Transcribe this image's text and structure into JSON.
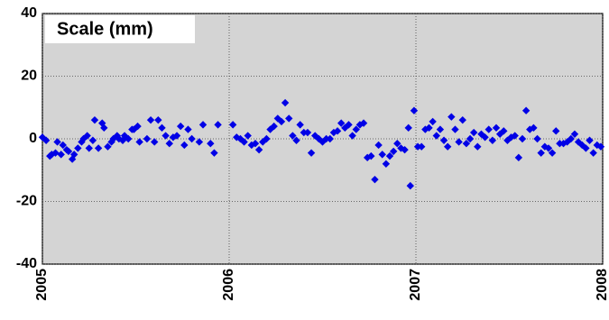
{
  "chart_data": {
    "type": "scatter",
    "title": "Scale (mm)",
    "color": "#0000e6",
    "x": [
      2005.0,
      2005.02,
      2005.04,
      2005.05,
      2005.07,
      2005.08,
      2005.1,
      2005.11,
      2005.13,
      2005.14,
      2005.16,
      2005.17,
      2005.19,
      2005.21,
      2005.22,
      2005.24,
      2005.25,
      2005.27,
      2005.28,
      2005.3,
      2005.32,
      2005.33,
      2005.35,
      2005.37,
      2005.38,
      2005.4,
      2005.41,
      2005.43,
      2005.44,
      2005.46,
      2005.48,
      2005.49,
      2005.51,
      2005.52,
      2005.56,
      2005.58,
      2005.6,
      2005.62,
      2005.64,
      2005.66,
      2005.68,
      2005.7,
      2005.72,
      2005.74,
      2005.76,
      2005.78,
      2005.8,
      2005.84,
      2005.86,
      2005.9,
      2005.92,
      2005.94,
      2006.02,
      2006.04,
      2006.06,
      2006.08,
      2006.1,
      2006.12,
      2006.14,
      2006.16,
      2006.18,
      2006.2,
      2006.22,
      2006.24,
      2006.26,
      2006.28,
      2006.3,
      2006.32,
      2006.34,
      2006.36,
      2006.38,
      2006.4,
      2006.42,
      2006.44,
      2006.46,
      2006.48,
      2006.5,
      2006.52,
      2006.54,
      2006.56,
      2006.58,
      2006.6,
      2006.62,
      2006.64,
      2006.66,
      2006.68,
      2006.7,
      2006.72,
      2006.74,
      2006.76,
      2006.78,
      2006.8,
      2006.82,
      2006.84,
      2006.86,
      2006.88,
      2006.9,
      2006.92,
      2006.94,
      2006.96,
      2006.97,
      2006.99,
      2007.01,
      2007.03,
      2007.05,
      2007.07,
      2007.09,
      2007.11,
      2007.13,
      2007.15,
      2007.17,
      2007.19,
      2007.21,
      2007.23,
      2007.25,
      2007.27,
      2007.29,
      2007.31,
      2007.33,
      2007.35,
      2007.37,
      2007.39,
      2007.41,
      2007.43,
      2007.45,
      2007.47,
      2007.49,
      2007.51,
      2007.53,
      2007.55,
      2007.57,
      2007.59,
      2007.61,
      2007.63,
      2007.65,
      2007.67,
      2007.69,
      2007.71,
      2007.73,
      2007.75,
      2007.77,
      2007.79,
      2007.81,
      2007.83,
      2007.85,
      2007.87,
      2007.89,
      2007.91,
      2007.93,
      2007.95,
      2007.97,
      2007.99
    ],
    "values": [
      0.5,
      -0.5,
      -5.5,
      -5,
      -4.5,
      -1,
      -5,
      -2,
      -3.5,
      -4,
      -6.5,
      -5,
      -3,
      -1,
      0,
      1,
      -3,
      -0.5,
      6,
      -3,
      5,
      3.5,
      -2.5,
      -1,
      0,
      1,
      0,
      -0.5,
      1,
      0,
      3,
      3,
      4,
      -1,
      0,
      6,
      -1,
      6,
      3.5,
      1,
      -1.5,
      0.5,
      1,
      4,
      -2,
      3,
      0,
      -1,
      4.5,
      -1.5,
      -4.5,
      4.5,
      4.5,
      0.5,
      0,
      -1,
      1,
      -2,
      -1.5,
      -3.5,
      -1,
      0,
      3,
      4,
      6.5,
      5.5,
      11.5,
      6.5,
      1,
      -0.5,
      4.5,
      2,
      2,
      -4.5,
      1,
      0,
      -1,
      0,
      0,
      2,
      2.5,
      5,
      3.5,
      4.5,
      1,
      3,
      4.5,
      5,
      -6,
      -5.5,
      -13,
      -2,
      -5,
      -8,
      -5.5,
      -4,
      -1.5,
      -3,
      -3.5,
      3.5,
      -15,
      9,
      -2.5,
      -2.5,
      3,
      3.5,
      5.5,
      1,
      3,
      -0.5,
      -2.5,
      7,
      3,
      -1,
      6,
      -1.5,
      0,
      2,
      -2.5,
      1.5,
      0.5,
      3,
      -0.5,
      3.5,
      1.5,
      2.5,
      -0.5,
      0.5,
      1,
      -6,
      0,
      9,
      3,
      3.5,
      0,
      -4.5,
      -2.5,
      -3,
      -4.5,
      2.5,
      -1.5,
      -1.5,
      -1,
      0,
      1.5,
      -1,
      -2,
      -3,
      -0.5,
      -4.5,
      -2,
      -2.5
    ],
    "xlim": [
      2005,
      2008
    ],
    "xticks": [
      2005,
      2006,
      2007,
      2008
    ],
    "ylim": [
      -40,
      40
    ],
    "yticks": [
      -40,
      -20,
      0,
      20,
      40
    ],
    "grid": true
  }
}
